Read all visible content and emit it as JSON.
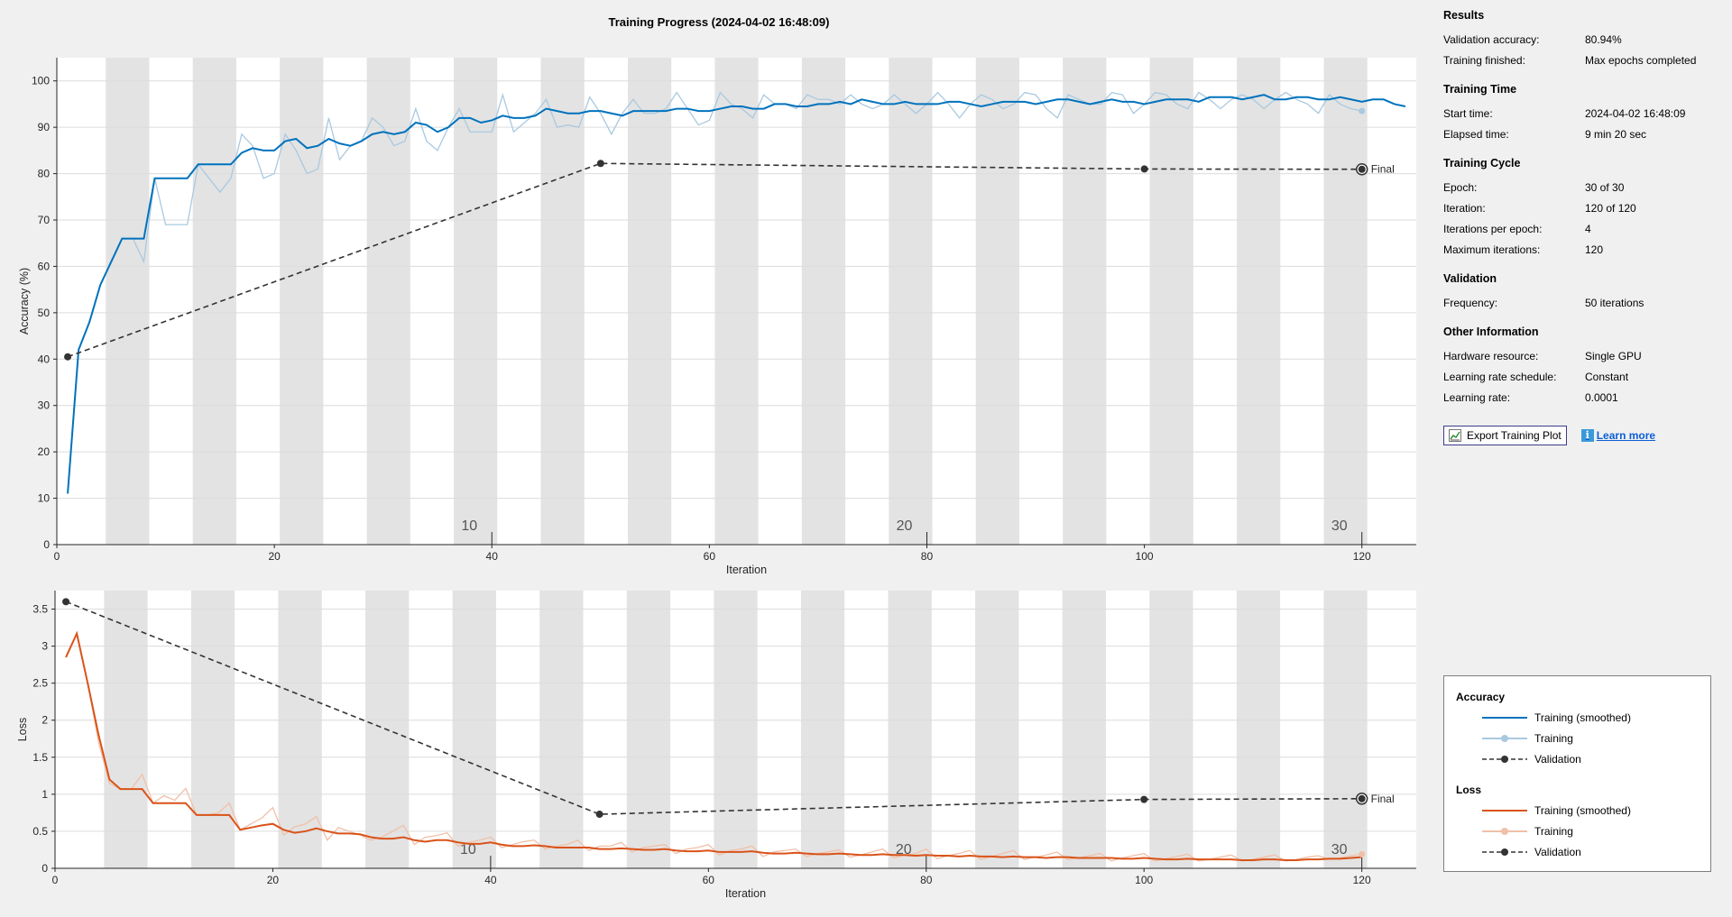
{
  "title": "Training Progress (2024-04-02 16:48:09)",
  "colors": {
    "accuracy_smoothed": "#0072bd",
    "accuracy_raw": "#a9c9e0",
    "loss_smoothed": "#d95319",
    "loss_raw": "#f0c0a8",
    "validation": "#333333",
    "epoch_band": "#e3e3e3",
    "grid": "#dcdcdc"
  },
  "info": {
    "sections": [
      {
        "heading": "Results",
        "rows": [
          {
            "label": "Validation accuracy:",
            "value": "80.94%"
          },
          {
            "label": "Training finished:",
            "value": "Max epochs completed"
          }
        ]
      },
      {
        "heading": "Training Time",
        "rows": [
          {
            "label": "Start time:",
            "value": "2024-04-02 16:48:09"
          },
          {
            "label": "Elapsed time:",
            "value": "9 min 20 sec"
          }
        ]
      },
      {
        "heading": "Training Cycle",
        "rows": [
          {
            "label": "Epoch:",
            "value": "30 of 30"
          },
          {
            "label": "Iteration:",
            "value": "120 of 120"
          },
          {
            "label": "Iterations per epoch:",
            "value": "4"
          },
          {
            "label": "Maximum iterations:",
            "value": "120"
          }
        ]
      },
      {
        "heading": "Validation",
        "rows": [
          {
            "label": "Frequency:",
            "value": "50 iterations"
          }
        ]
      },
      {
        "heading": "Other Information",
        "rows": [
          {
            "label": "Hardware resource:",
            "value": "Single GPU"
          },
          {
            "label": "Learning rate schedule:",
            "value": "Constant"
          },
          {
            "label": "Learning rate:",
            "value": "0.0001"
          }
        ]
      }
    ],
    "export_button": "Export Training Plot",
    "learn_more": "Learn more"
  },
  "legend": {
    "accuracy_heading": "Accuracy",
    "loss_heading": "Loss",
    "training_smoothed": "Training (smoothed)",
    "training": "Training",
    "validation": "Validation"
  },
  "chart_data": [
    {
      "type": "line",
      "title": "Training Progress (2024-04-02 16:48:09)",
      "xlabel": "Iteration",
      "ylabel": "Accuracy (%)",
      "xlim": [
        0,
        125
      ],
      "ylim": [
        0,
        105
      ],
      "xticks": [
        0,
        20,
        40,
        60,
        80,
        100,
        120
      ],
      "yticks": [
        0,
        10,
        20,
        30,
        40,
        50,
        60,
        70,
        80,
        90,
        100
      ],
      "epoch_labels": [
        10,
        20,
        30
      ],
      "epochs": 30,
      "iterations_per_epoch": 4,
      "grid": true,
      "series": [
        {
          "name": "Training (smoothed)",
          "x_start": 1,
          "values": [
            11,
            42,
            48,
            56,
            61,
            66,
            66,
            66,
            79,
            79,
            79,
            79,
            82,
            82,
            82,
            82,
            84.5,
            85.5,
            85,
            85,
            87,
            87.5,
            85.5,
            86,
            87.5,
            86.5,
            86,
            87,
            88.5,
            89,
            88.5,
            89,
            91,
            90.5,
            89,
            90,
            92,
            92,
            91,
            91.5,
            92.5,
            92,
            92,
            92.5,
            94,
            93.5,
            93,
            93,
            93.5,
            93.5,
            93,
            92.5,
            93.5,
            93.5,
            93.5,
            93.5,
            94,
            94,
            93.5,
            93.5,
            94,
            94.5,
            94.5,
            94,
            94,
            95,
            95,
            94.5,
            94.5,
            95,
            95,
            95.5,
            95,
            96,
            95.5,
            95,
            95,
            95.5,
            95,
            95,
            95,
            95.5,
            95.5,
            95,
            94.5,
            95,
            95.5,
            95.5,
            95.5,
            95,
            95.5,
            96,
            96,
            95.5,
            95,
            95.5,
            96,
            95.5,
            95.5,
            95,
            95.5,
            96,
            96,
            96,
            95.5,
            96.5,
            96.5,
            96.5,
            96,
            96.5,
            97,
            96,
            96,
            96.5,
            96.5,
            96,
            96,
            96.5,
            96,
            95.5,
            96,
            96,
            95,
            94.5
          ]
        },
        {
          "name": "Training",
          "x_start": 1,
          "values": [
            11,
            42,
            48,
            56,
            61,
            66,
            66,
            61,
            79,
            69,
            69,
            69,
            82,
            79,
            76,
            79,
            88.5,
            86,
            79,
            80,
            88.5,
            85,
            80,
            81,
            92,
            83,
            86,
            87,
            92,
            90,
            86,
            87,
            94,
            87,
            85,
            90,
            94,
            89,
            89,
            89,
            97,
            89,
            91,
            93,
            96,
            90,
            90.5,
            90,
            96.5,
            93,
            88.5,
            93,
            96,
            93,
            93,
            94,
            97.5,
            94,
            90.5,
            91.5,
            97.5,
            95,
            94,
            92,
            97,
            95,
            95,
            94,
            97,
            96,
            96,
            95,
            97,
            95,
            94,
            95,
            97,
            95,
            93,
            95,
            97.5,
            95,
            92,
            95,
            97,
            96,
            94,
            95,
            97.5,
            97,
            94,
            92,
            97,
            96,
            95,
            95,
            97.5,
            97,
            93,
            95,
            97.5,
            97,
            95,
            94,
            97.5,
            96,
            94,
            96,
            97,
            96,
            94,
            96,
            97.5,
            96,
            95,
            93,
            97,
            95,
            94,
            93.5
          ]
        },
        {
          "name": "Validation",
          "x": [
            1,
            50,
            100,
            120
          ],
          "values": [
            40.5,
            82.2,
            81,
            80.94
          ],
          "final_label": "Final"
        }
      ]
    },
    {
      "type": "line",
      "xlabel": "Iteration",
      "ylabel": "Loss",
      "xlim": [
        0,
        125
      ],
      "ylim": [
        0,
        3.75
      ],
      "xticks": [
        0,
        20,
        40,
        60,
        80,
        100,
        120
      ],
      "yticks": [
        0,
        0.5,
        1,
        1.5,
        2,
        2.5,
        3,
        3.5
      ],
      "epoch_labels": [
        10,
        20,
        30
      ],
      "epochs": 30,
      "iterations_per_epoch": 4,
      "grid": true,
      "series": [
        {
          "name": "Training (smoothed)",
          "x_start": 1,
          "values": [
            2.85,
            3.17,
            2.5,
            1.8,
            1.2,
            1.07,
            1.07,
            1.07,
            0.88,
            0.88,
            0.88,
            0.88,
            0.72,
            0.72,
            0.72,
            0.72,
            0.52,
            0.55,
            0.58,
            0.6,
            0.52,
            0.48,
            0.5,
            0.54,
            0.5,
            0.47,
            0.47,
            0.46,
            0.42,
            0.4,
            0.4,
            0.42,
            0.38,
            0.36,
            0.38,
            0.38,
            0.35,
            0.33,
            0.33,
            0.35,
            0.32,
            0.3,
            0.3,
            0.31,
            0.3,
            0.28,
            0.28,
            0.28,
            0.28,
            0.26,
            0.26,
            0.27,
            0.26,
            0.25,
            0.25,
            0.26,
            0.24,
            0.23,
            0.23,
            0.24,
            0.22,
            0.22,
            0.22,
            0.23,
            0.21,
            0.2,
            0.2,
            0.21,
            0.2,
            0.19,
            0.19,
            0.2,
            0.19,
            0.18,
            0.18,
            0.19,
            0.18,
            0.18,
            0.17,
            0.18,
            0.17,
            0.17,
            0.16,
            0.17,
            0.16,
            0.16,
            0.15,
            0.16,
            0.15,
            0.15,
            0.14,
            0.15,
            0.15,
            0.14,
            0.14,
            0.14,
            0.14,
            0.13,
            0.13,
            0.14,
            0.13,
            0.12,
            0.12,
            0.13,
            0.12,
            0.12,
            0.12,
            0.12,
            0.11,
            0.11,
            0.12,
            0.12,
            0.11,
            0.11,
            0.12,
            0.12,
            0.13,
            0.13,
            0.14,
            0.15
          ]
        },
        {
          "name": "Training",
          "x_start": 1,
          "values": [
            2.85,
            3.17,
            2.5,
            1.7,
            1.15,
            1.07,
            1.07,
            1.27,
            0.88,
            0.98,
            0.92,
            1.08,
            0.72,
            0.72,
            0.75,
            0.88,
            0.52,
            0.6,
            0.68,
            0.82,
            0.45,
            0.56,
            0.6,
            0.7,
            0.38,
            0.55,
            0.5,
            0.45,
            0.38,
            0.42,
            0.5,
            0.58,
            0.32,
            0.42,
            0.44,
            0.48,
            0.3,
            0.35,
            0.38,
            0.42,
            0.28,
            0.32,
            0.36,
            0.38,
            0.26,
            0.3,
            0.32,
            0.38,
            0.24,
            0.3,
            0.3,
            0.35,
            0.22,
            0.28,
            0.3,
            0.32,
            0.2,
            0.26,
            0.28,
            0.32,
            0.18,
            0.24,
            0.26,
            0.3,
            0.16,
            0.22,
            0.24,
            0.26,
            0.16,
            0.2,
            0.22,
            0.25,
            0.15,
            0.18,
            0.22,
            0.26,
            0.14,
            0.18,
            0.2,
            0.26,
            0.13,
            0.17,
            0.2,
            0.24,
            0.12,
            0.16,
            0.2,
            0.24,
            0.12,
            0.15,
            0.18,
            0.22,
            0.12,
            0.14,
            0.17,
            0.2,
            0.1,
            0.14,
            0.17,
            0.2,
            0.1,
            0.13,
            0.16,
            0.19,
            0.1,
            0.12,
            0.15,
            0.18,
            0.1,
            0.12,
            0.15,
            0.18,
            0.1,
            0.12,
            0.15,
            0.17,
            0.12,
            0.14,
            0.17,
            0.19
          ]
        },
        {
          "name": "Validation",
          "x": [
            1,
            50,
            100,
            120
          ],
          "values": [
            3.6,
            0.73,
            0.93,
            0.94
          ],
          "final_label": "Final"
        }
      ]
    }
  ]
}
